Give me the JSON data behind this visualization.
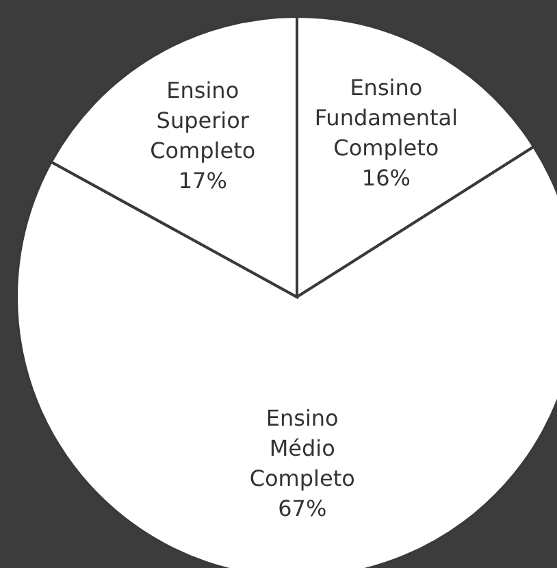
{
  "chart_data": {
    "type": "pie",
    "categories": [
      "Ensino Fundamental Completo",
      "Ensino Médio Completo",
      "Ensino Superior Completo"
    ],
    "values": [
      16,
      67,
      17
    ],
    "value_labels": [
      "16%",
      "67%",
      "17%"
    ],
    "colors": [
      "#ffffff",
      "#ffffff",
      "#ffffff"
    ],
    "legend": false
  }
}
